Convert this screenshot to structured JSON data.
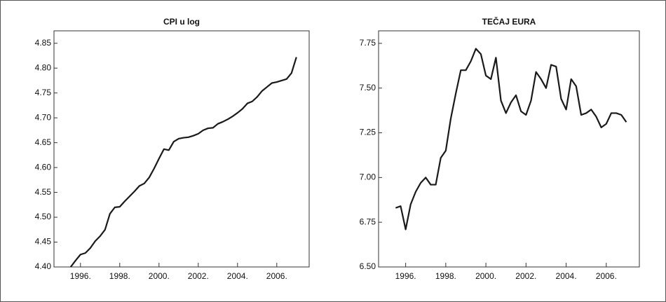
{
  "chart_data": [
    {
      "type": "line",
      "title": "CPI u log",
      "x": [
        1995.5,
        1995.75,
        1996,
        1996.25,
        1996.5,
        1996.75,
        1997,
        1997.25,
        1997.5,
        1997.75,
        1998,
        1998.25,
        1998.5,
        1998.75,
        1999,
        1999.25,
        1999.5,
        1999.75,
        2000,
        2000.25,
        2000.5,
        2000.75,
        2001,
        2001.25,
        2001.5,
        2001.75,
        2002,
        2002.25,
        2002.5,
        2002.75,
        2003,
        2003.25,
        2003.5,
        2003.75,
        2004,
        2004.25,
        2004.5,
        2004.75,
        2005,
        2005.25,
        2005.5,
        2005.75,
        2006,
        2006.25,
        2006.5,
        2006.75,
        2007
      ],
      "series": [
        {
          "color": "#1a1a1a",
          "values": [
            4.4,
            4.413,
            4.425,
            4.428,
            4.438,
            4.452,
            4.462,
            4.475,
            4.507,
            4.52,
            4.521,
            4.532,
            4.542,
            4.552,
            4.563,
            4.568,
            4.58,
            4.598,
            4.618,
            4.637,
            4.635,
            4.652,
            4.658,
            4.66,
            4.661,
            4.664,
            4.668,
            4.675,
            4.679,
            4.68,
            4.688,
            4.692,
            4.697,
            4.703,
            4.71,
            4.718,
            4.729,
            4.733,
            4.742,
            4.754,
            4.762,
            4.77,
            4.772,
            4.775,
            4.778,
            4.79,
            4.822
          ]
        }
      ],
      "xlim": [
        1994.65,
        2007.65
      ],
      "xticks": [
        {
          "value": 1996,
          "label": "1996."
        },
        {
          "value": 1998,
          "label": "1998."
        },
        {
          "value": 2000,
          "label": "2000."
        },
        {
          "value": 2002,
          "label": "2002."
        },
        {
          "value": 2004,
          "label": "2004."
        },
        {
          "value": 2006,
          "label": "2006."
        }
      ],
      "ylim": [
        4.4,
        4.875
      ],
      "yticks": [
        {
          "value": 4.4,
          "label": "4.40"
        },
        4.45,
        {
          "value": 4.5,
          "label": "4.50"
        },
        4.55,
        {
          "value": 4.6,
          "label": "4.60"
        },
        4.65,
        {
          "value": 4.7,
          "label": "4.70"
        },
        4.75,
        {
          "value": 4.8,
          "label": "4.80"
        },
        4.85
      ]
    },
    {
      "type": "line",
      "title": "TEČAJ EURA",
      "x": [
        1995.5,
        1995.75,
        1996,
        1996.25,
        1996.5,
        1996.75,
        1997,
        1997.25,
        1997.5,
        1997.75,
        1998,
        1998.25,
        1998.5,
        1998.75,
        1999,
        1999.25,
        1999.5,
        1999.75,
        2000,
        2000.25,
        2000.5,
        2000.75,
        2001,
        2001.25,
        2001.5,
        2001.75,
        2002,
        2002.25,
        2002.5,
        2002.75,
        2003,
        2003.25,
        2003.5,
        2003.75,
        2004,
        2004.25,
        2004.5,
        2004.75,
        2005,
        2005.25,
        2005.5,
        2005.75,
        2006,
        2006.25,
        2006.5,
        2006.75,
        2007
      ],
      "series": [
        {
          "color": "#1a1a1a",
          "values": [
            6.83,
            6.84,
            6.71,
            6.85,
            6.92,
            6.97,
            7.0,
            6.96,
            6.96,
            7.11,
            7.15,
            7.33,
            7.47,
            7.6,
            7.6,
            7.65,
            7.72,
            7.69,
            7.57,
            7.55,
            7.67,
            7.43,
            7.36,
            7.42,
            7.46,
            7.37,
            7.35,
            7.43,
            7.59,
            7.55,
            7.5,
            7.63,
            7.62,
            7.44,
            7.38,
            7.55,
            7.51,
            7.35,
            7.36,
            7.38,
            7.34,
            7.28,
            7.3,
            7.36,
            7.36,
            7.35,
            7.31
          ]
        }
      ],
      "xlim": [
        1994.65,
        2007.65
      ],
      "xticks": [
        {
          "value": 1996,
          "label": "1996."
        },
        {
          "value": 1998,
          "label": "1998."
        },
        {
          "value": 2000,
          "label": "2000."
        },
        {
          "value": 2002,
          "label": "2002."
        },
        {
          "value": 2004,
          "label": "2004."
        },
        {
          "value": 2006,
          "label": "2006."
        }
      ],
      "ylim": [
        6.5,
        7.82
      ],
      "yticks": [
        {
          "value": 6.5,
          "label": "6.50"
        },
        6.75,
        {
          "value": 7.0,
          "label": "7.00"
        },
        7.25,
        {
          "value": 7.5,
          "label": "7.50"
        },
        7.75
      ]
    }
  ]
}
